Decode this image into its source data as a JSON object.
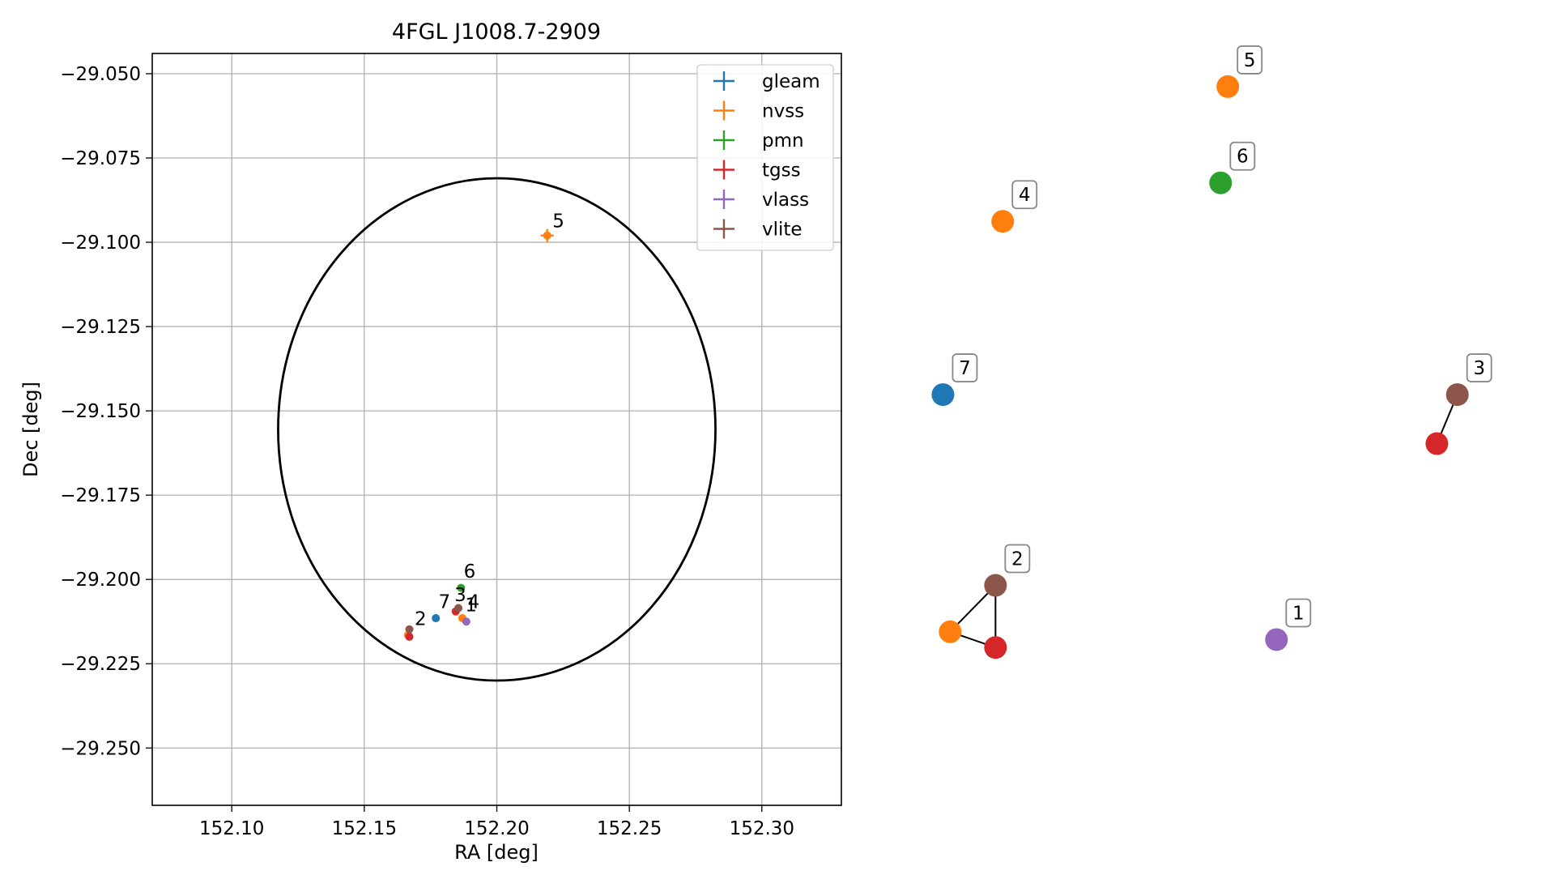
{
  "chart_data": [
    {
      "type": "scatter",
      "title": "4FGL J1008.7-2909",
      "xlabel": "RA [deg]",
      "ylabel": "Dec [deg]",
      "xlim": [
        152.07,
        152.33
      ],
      "ylim": [
        -29.267,
        -29.044
      ],
      "xticks": [
        152.1,
        152.15,
        152.2,
        152.25,
        152.3
      ],
      "xtick_labels": [
        "152.10",
        "152.15",
        "152.20",
        "152.25",
        "152.30"
      ],
      "yticks": [
        -29.05,
        -29.075,
        -29.1,
        -29.125,
        -29.15,
        -29.175,
        -29.2,
        -29.225,
        -29.25
      ],
      "ytick_labels": [
        "−29.050",
        "−29.075",
        "−29.100",
        "−29.125",
        "−29.150",
        "−29.175",
        "−29.200",
        "−29.225",
        "−29.250"
      ],
      "grid": true,
      "legend_position": "top-right",
      "ellipse": {
        "center": [
          152.2,
          -29.1555
        ],
        "ra_halfwidth": 0.0825,
        "dec_halfwidth": 0.0745
      },
      "series": [
        {
          "name": "gleam",
          "color": "#1f77b4",
          "points": [
            {
              "x": 152.177,
              "y": -29.2115,
              "label": "7"
            }
          ]
        },
        {
          "name": "nvss",
          "color": "#ff7f0e",
          "points": [
            {
              "x": 152.219,
              "y": -29.098,
              "label": "5",
              "err": true
            },
            {
              "x": 152.187,
              "y": -29.2115,
              "label": "4"
            },
            {
              "x": 152.1665,
              "y": -29.2165,
              "label": "2"
            }
          ]
        },
        {
          "name": "pmn",
          "color": "#2ca02c",
          "points": [
            {
              "x": 152.1865,
              "y": -29.2025,
              "label": "6"
            }
          ]
        },
        {
          "name": "tgss",
          "color": "#d62728",
          "points": [
            {
              "x": 152.1845,
              "y": -29.2095,
              "label": "3"
            },
            {
              "x": 152.167,
              "y": -29.217,
              "label": "2"
            }
          ]
        },
        {
          "name": "vlass",
          "color": "#9467bd",
          "points": [
            {
              "x": 152.1885,
              "y": -29.2125,
              "label": "1"
            }
          ]
        },
        {
          "name": "vlite",
          "color": "#8c564b",
          "points": [
            {
              "x": 152.1855,
              "y": -29.2085,
              "label": "3"
            },
            {
              "x": 152.167,
              "y": -29.2148,
              "label": "2"
            }
          ]
        }
      ],
      "point_labels": [
        {
          "text": "5",
          "x": 152.221,
          "y": -29.0955
        },
        {
          "text": "6",
          "x": 152.1875,
          "y": -29.1995
        },
        {
          "text": "7",
          "x": 152.178,
          "y": -29.2085
        },
        {
          "text": "3",
          "x": 152.184,
          "y": -29.2065
        },
        {
          "text": "4",
          "x": 152.189,
          "y": -29.2085
        },
        {
          "text": "1",
          "x": 152.188,
          "y": -29.2095
        },
        {
          "text": "2",
          "x": 152.169,
          "y": -29.2135
        }
      ]
    },
    {
      "type": "network",
      "nodes": [
        {
          "label": "5",
          "color": "#ff7f0e",
          "x": 0.583,
          "y": 0.099,
          "tag": true
        },
        {
          "label": "6",
          "color": "#2ca02c",
          "x": 0.57,
          "y": 0.209,
          "tag": true
        },
        {
          "label": "4",
          "color": "#ff7f0e",
          "x": 0.176,
          "y": 0.253,
          "tag": true
        },
        {
          "label": "7",
          "color": "#1f77b4",
          "x": 0.068,
          "y": 0.451,
          "tag": true
        },
        {
          "label": "3",
          "color": "#8c564b",
          "x": 0.998,
          "y": 0.451,
          "tag": true
        },
        {
          "label": "",
          "color": "#d62728",
          "x": 0.961,
          "y": 0.507,
          "tag": false
        },
        {
          "label": "2",
          "color": "#8c564b",
          "x": 0.163,
          "y": 0.669,
          "tag": true
        },
        {
          "label": "",
          "color": "#ff7f0e",
          "x": 0.081,
          "y": 0.722,
          "tag": false
        },
        {
          "label": "",
          "color": "#d62728",
          "x": 0.163,
          "y": 0.74,
          "tag": false
        },
        {
          "label": "1",
          "color": "#9467bd",
          "x": 0.671,
          "y": 0.731,
          "tag": true
        }
      ],
      "edges": [
        [
          4,
          5
        ],
        [
          6,
          7
        ],
        [
          6,
          8
        ],
        [
          7,
          8
        ]
      ]
    }
  ]
}
